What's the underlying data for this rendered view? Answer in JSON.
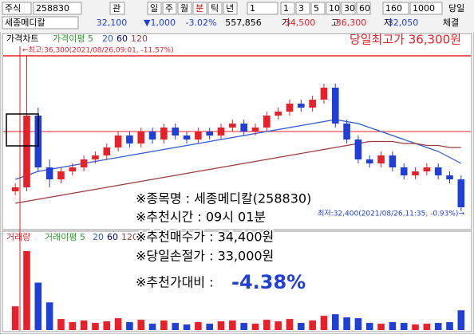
{
  "toolbar": {
    "market": "주식",
    "code": "258830",
    "watch": "관",
    "periods": [
      "일",
      "주",
      "월",
      "분",
      "틱",
      "년"
    ],
    "period_count": "1",
    "minutes": [
      "1",
      "3",
      "5",
      "10",
      "30",
      "60"
    ],
    "view_count": "160",
    "total": "1000",
    "today": "당일"
  },
  "quote": {
    "name": "세종메디칼",
    "price": "32,100",
    "change": "▼1,000",
    "rate": "-3.02%",
    "volume": "557,856",
    "open_label": "거",
    "open": "34,500",
    "high_label": "고",
    "high": "36,300",
    "low_label": "저",
    "low": "32,050",
    "trade": "체결"
  },
  "price_pane": {
    "title": "가격차트",
    "ma_label": "가격이평 5",
    "ma_periods": [
      "20",
      "60",
      "120"
    ],
    "high_note": "당일최고가 36,300원",
    "max_label": "←최고:36,300(2021/08/26,09:01, -11.57%)",
    "min_label": "최저:32,400(2021/08/26,11:35, -0.93%)→"
  },
  "volume_pane": {
    "title": "거래량",
    "ma_label": "거래이평 5",
    "ma_periods": [
      "20",
      "60",
      "120"
    ]
  },
  "overlay": {
    "lines": [
      "※종목명 : 세종메디칼(258830)",
      "※추천시간 : 09시 01분",
      "※추천매수가 : 34,400원",
      "※당일손절가 : 33,000원",
      "※추천가대비 :"
    ],
    "result": "-4.38%"
  },
  "chart_data": {
    "type": "candlestick",
    "ylim": [
      32000,
      36600
    ],
    "hlines": [
      36300,
      34400
    ],
    "up_color": "#e8202a",
    "down_color": "#1f3fd6",
    "candles": [
      [
        32900,
        33100,
        32800,
        33000
      ],
      [
        33000,
        36300,
        32900,
        34800
      ],
      [
        34800,
        35000,
        33400,
        33500
      ],
      [
        33500,
        33700,
        33000,
        33200
      ],
      [
        33200,
        33500,
        33100,
        33400
      ],
      [
        33400,
        33600,
        33300,
        33500
      ],
      [
        33500,
        33800,
        33400,
        33700
      ],
      [
        33700,
        33900,
        33600,
        33800
      ],
      [
        33800,
        34100,
        33700,
        34000
      ],
      [
        34000,
        34400,
        33900,
        34300
      ],
      [
        34300,
        34400,
        34000,
        34100
      ],
      [
        34100,
        34500,
        34000,
        34400
      ],
      [
        34400,
        34500,
        34100,
        34200
      ],
      [
        34200,
        34600,
        34100,
        34500
      ],
      [
        34500,
        34600,
        34200,
        34300
      ],
      [
        34300,
        34400,
        34100,
        34200
      ],
      [
        34200,
        34500,
        34100,
        34400
      ],
      [
        34400,
        34500,
        34200,
        34300
      ],
      [
        34300,
        34600,
        34200,
        34500
      ],
      [
        34500,
        34700,
        34400,
        34600
      ],
      [
        34600,
        34700,
        34300,
        34400
      ],
      [
        34400,
        34600,
        34300,
        34500
      ],
      [
        34500,
        34900,
        34400,
        34800
      ],
      [
        34800,
        35000,
        34700,
        34900
      ],
      [
        34900,
        35200,
        34800,
        35100
      ],
      [
        35100,
        35200,
        34900,
        35000
      ],
      [
        35000,
        35300,
        34900,
        35200
      ],
      [
        35200,
        35600,
        35100,
        35500
      ],
      [
        35500,
        35600,
        34500,
        34600
      ],
      [
        34600,
        34700,
        34100,
        34200
      ],
      [
        34200,
        34300,
        33600,
        33700
      ],
      [
        33700,
        33800,
        33500,
        33600
      ],
      [
        33600,
        33900,
        33500,
        33800
      ],
      [
        33800,
        33900,
        33400,
        33500
      ],
      [
        33500,
        33600,
        33200,
        33300
      ],
      [
        33300,
        33500,
        33200,
        33400
      ],
      [
        33400,
        33600,
        33300,
        33500
      ],
      [
        33500,
        33600,
        33200,
        33300
      ],
      [
        33300,
        33400,
        33100,
        33200
      ],
      [
        33200,
        33300,
        32400,
        32500
      ]
    ],
    "ma_series": [
      {
        "name": "20",
        "color": "#2a5bd7",
        "values": [
          33200,
          33300,
          33400,
          33450,
          33500,
          33550,
          33600,
          33650,
          33700,
          33750,
          33800,
          33850,
          33900,
          33950,
          34000,
          34050,
          34100,
          34150,
          34200,
          34250,
          34300,
          34350,
          34400,
          34450,
          34500,
          34550,
          34600,
          34650,
          34700,
          34650,
          34600,
          34500,
          34400,
          34300,
          34200,
          34100,
          34000,
          33900,
          33750,
          33600
        ]
      },
      {
        "name": "120",
        "color": "#9b3b3b",
        "values": [
          32600,
          32650,
          32700,
          32750,
          32800,
          32850,
          32900,
          32950,
          33000,
          33050,
          33100,
          33150,
          33200,
          33250,
          33300,
          33350,
          33400,
          33450,
          33500,
          33550,
          33600,
          33650,
          33700,
          33750,
          33800,
          33850,
          33900,
          33950,
          34000,
          34050,
          34100,
          34150,
          34150,
          34150,
          34100,
          34100,
          34050,
          34050,
          34000,
          34000
        ]
      }
    ],
    "volume_ylim": [
      0,
      110
    ],
    "volumes": [
      30,
      100,
      60,
      35,
      14,
      10,
      12,
      9,
      11,
      15,
      10,
      13,
      8,
      12,
      9,
      7,
      10,
      8,
      11,
      12,
      9,
      8,
      13,
      11,
      14,
      9,
      12,
      18,
      20,
      16,
      15,
      9,
      8,
      10,
      9,
      7,
      8,
      9,
      10,
      25
    ]
  }
}
